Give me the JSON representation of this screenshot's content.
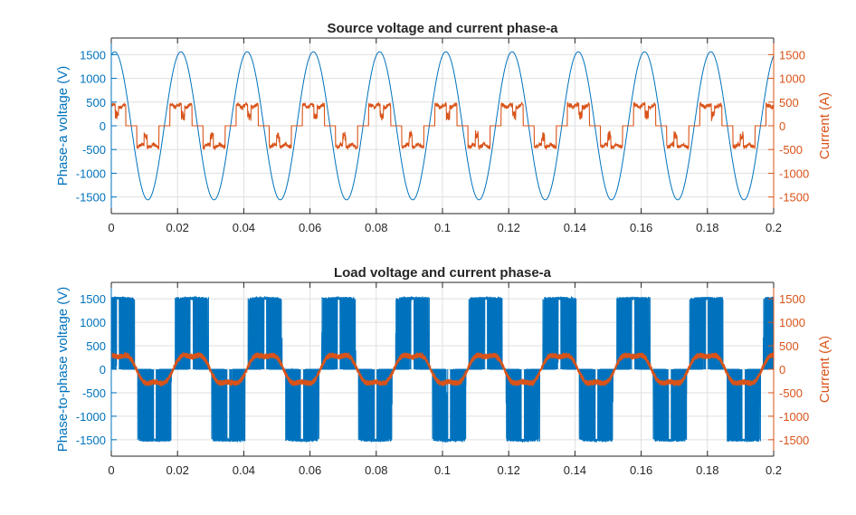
{
  "colors": {
    "voltage": "#0072BD",
    "current": "#D95319",
    "axis": "#262626",
    "grid": "#dfdfdf"
  },
  "chart_data": [
    {
      "type": "line",
      "title": "Source voltage and current phase-a",
      "xlabel": "",
      "ylabel_left": "Phase-a voltage (V)",
      "ylabel_right": "Current (A)",
      "xlim": [
        0,
        0.2
      ],
      "ylim": [
        -1850,
        1850
      ],
      "xticks": [
        0,
        0.02,
        0.04,
        0.06,
        0.08,
        0.1,
        0.12,
        0.14,
        0.16,
        0.18,
        0.2
      ],
      "xtick_labels": [
        "0",
        "0.02",
        "0.04",
        "0.06",
        "0.08",
        "0.1",
        "0.12",
        "0.14",
        "0.16",
        "0.18",
        "0.2"
      ],
      "yticks": [
        -1500,
        -1000,
        -500,
        0,
        500,
        1000,
        1500
      ],
      "ytick_labels": [
        "-1500",
        "-1000",
        "-500",
        "0",
        "500",
        "1000",
        "1500"
      ],
      "grid": true,
      "series": [
        {
          "name": "Phase-a voltage",
          "axis": "left",
          "frequency_hz": 50,
          "amplitude": 1560,
          "phase_deg": 72,
          "waveform": "sine"
        },
        {
          "name": "Phase-a current",
          "axis": "right",
          "frequency_hz": 50,
          "amplitude": 480,
          "waveform": "six-pulse rectifier blocks with switching ripple"
        }
      ]
    },
    {
      "type": "line",
      "title": "Load voltage and current phase-a",
      "xlabel": "",
      "ylabel_left": "Phase-to-phase voltage (V)",
      "ylabel_right": "Current (A)",
      "xlim": [
        0,
        0.2
      ],
      "ylim": [
        -1850,
        1850
      ],
      "xticks": [
        0,
        0.02,
        0.04,
        0.06,
        0.08,
        0.1,
        0.12,
        0.14,
        0.16,
        0.18,
        0.2
      ],
      "xtick_labels": [
        "0",
        "0.02",
        "0.04",
        "0.06",
        "0.08",
        "0.1",
        "0.12",
        "0.14",
        "0.16",
        "0.18",
        "0.2"
      ],
      "yticks": [
        -1500,
        -1000,
        -500,
        0,
        500,
        1000,
        1500
      ],
      "ytick_labels": [
        "-1500",
        "-1000",
        "-500",
        "0",
        "500",
        "1000",
        "1500"
      ],
      "grid": true,
      "series": [
        {
          "name": "Phase-to-phase voltage",
          "axis": "left",
          "frequency_hz": 45,
          "amplitude": 1540,
          "waveform": "PWM pulses"
        },
        {
          "name": "Load current",
          "axis": "right",
          "frequency_hz": 45,
          "amplitude": 400,
          "waveform": "quasi-sinusoidal with ripple"
        }
      ]
    }
  ]
}
